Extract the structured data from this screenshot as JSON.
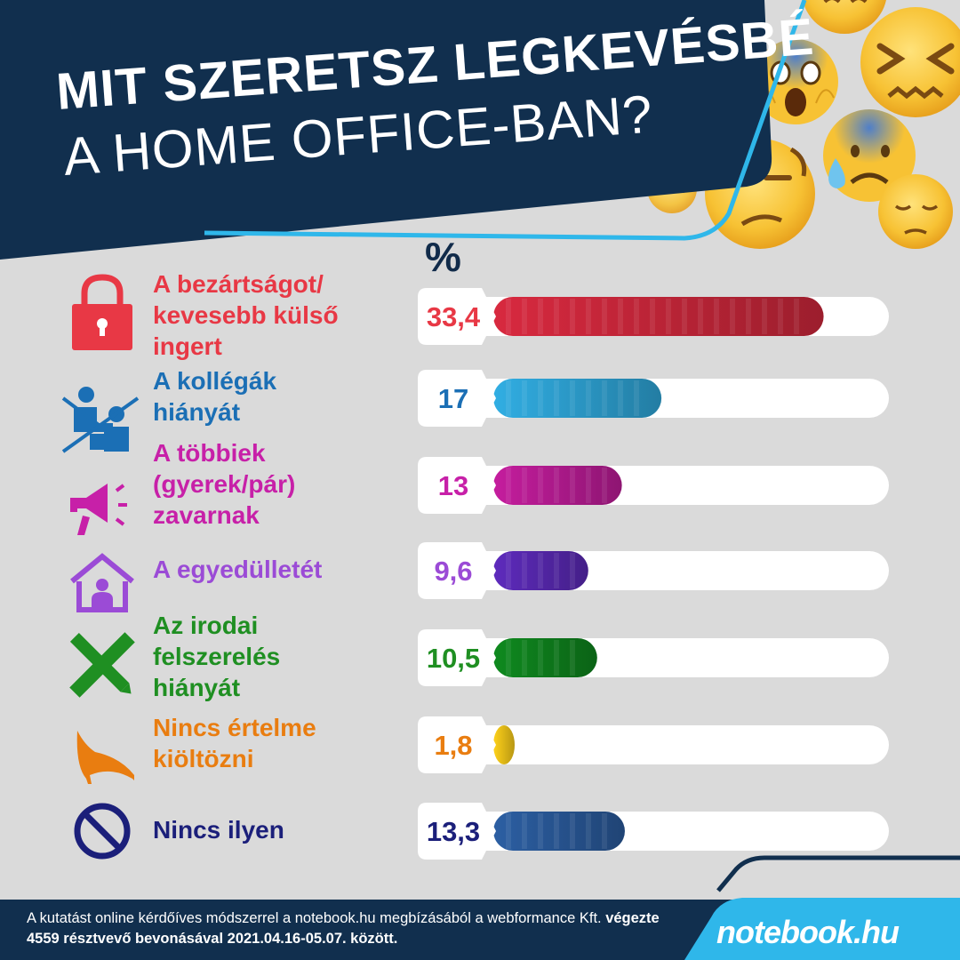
{
  "header": {
    "title_line1": "MIT SZERETSZ LEGKEVÉSBÉ",
    "title_line2": "A HOME OFFICE-BAN?",
    "bg_color": "#112f4e",
    "accent_color": "#2fb7ea"
  },
  "chart_data": {
    "type": "bar",
    "unit_label": "%",
    "xlim": [
      0,
      40
    ],
    "categories": [
      "A bezártságot/\nkevesebb külső\ningert",
      "A kollégák\nhiányát",
      "A többiek\n(gyerek/pár)\nzavarnak",
      "A egyedülletét",
      "Az irodai\nfelszerelés\nhiányát",
      "Nincs értelme\nkiöltözni",
      "Nincs ilyen"
    ],
    "values": [
      33.4,
      17,
      13,
      9.6,
      10.5,
      1.8,
      13.3
    ],
    "value_labels": [
      "33,4",
      "17",
      "13",
      "9,6",
      "10,5",
      "1,8",
      "13,3"
    ],
    "colors": [
      "#e83845",
      "#1b6fb5",
      "#c720a8",
      "#9b4bd6",
      "#1f8f22",
      "#e97d10",
      "#1b1f7a"
    ],
    "bar_colors": [
      "#d8293f",
      "#31aee3",
      "#c51d9e",
      "#5e2bbd",
      "#0f8a1f",
      "#ffd21a",
      "#2c5fa3"
    ],
    "icons": [
      "lock-icon",
      "no-colleagues-icon",
      "megaphone-icon",
      "home-person-icon",
      "ruler-pencil-icon",
      "high-heel-icon",
      "prohibited-icon"
    ]
  },
  "footer": {
    "text_normal_1": "A kutatást online kérdőíves módszerrel a notebook.hu megbízásából a webformance Kft. ",
    "text_bold": "végezte 4559 résztvevő bevonásával 2021.04.16-05.07. között.",
    "brand": "notebook.hu",
    "bg_color": "#112f4e",
    "brand_color": "#2fb7ea"
  },
  "decor": {
    "emojis": [
      "weary-face-icon",
      "screaming-face-icon",
      "confounded-face-icon",
      "anxious-sweat-face-icon",
      "unamused-face-icon",
      "pensive-face-icon",
      "small-confounded-face-icon"
    ]
  }
}
